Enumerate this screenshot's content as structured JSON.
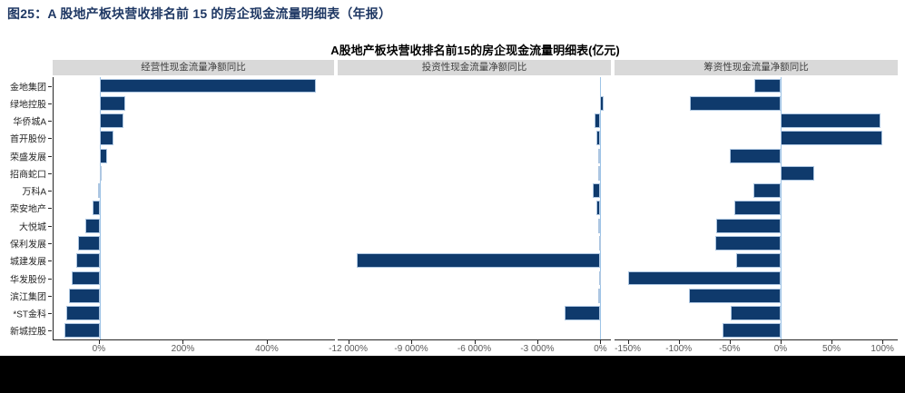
{
  "doc_title": "图25：A 股地产板块营收排名前 15 的房企现金流量明细表（年报）",
  "chart_data": {
    "type": "bar",
    "orientation": "horizontal",
    "title": "A股地产板块营收排名前15的房企现金流量明细表(亿元)",
    "unit": "%",
    "grid": false,
    "legend_position": "none",
    "categories": [
      "金地集团",
      "绿地控股",
      "华侨城A",
      "首开股份",
      "荣盛发展",
      "招商蛇口",
      "万科A",
      "荣安地产",
      "大悦城",
      "保利发展",
      "城建发展",
      "华发股份",
      "滨江集团",
      "*ST金科",
      "新城控股"
    ],
    "panels": [
      {
        "title": "经营性现金流量净额同比",
        "xmin": -110,
        "xmax": 560,
        "ticks": [
          {
            "value": 0,
            "label": "0%"
          },
          {
            "value": 200,
            "label": "200%"
          },
          {
            "value": 400,
            "label": "400%"
          }
        ],
        "values": [
          515,
          61,
          57,
          32,
          17,
          2,
          -5,
          -16,
          -34,
          -52,
          -55,
          -66,
          -74,
          -79,
          -83
        ]
      },
      {
        "title": "投资性现金流量净额同比",
        "xmin": -12500,
        "xmax": 500,
        "ticks": [
          {
            "value": -12000,
            "label": "-12 000%"
          },
          {
            "value": -9000,
            "label": "-9 000%"
          },
          {
            "value": -6000,
            "label": "-6 000%"
          },
          {
            "value": -3000,
            "label": "-3 000%"
          },
          {
            "value": 0,
            "label": "0%"
          }
        ],
        "values": [
          0,
          140,
          -280,
          -170,
          -110,
          -85,
          -350,
          -200,
          -110,
          -70,
          -11600,
          -55,
          -85,
          -1700,
          0
        ]
      },
      {
        "title": "筹资性现金流量净额同比",
        "xmin": -163,
        "xmax": 115,
        "ticks": [
          {
            "value": -150,
            "label": "-150%"
          },
          {
            "value": -100,
            "label": "-100%"
          },
          {
            "value": -50,
            "label": "-50%"
          },
          {
            "value": 0,
            "label": "0%"
          },
          {
            "value": 50,
            "label": "50%"
          },
          {
            "value": 100,
            "label": "100%"
          }
        ],
        "values": [
          -26,
          -89,
          98,
          100,
          -50,
          33,
          -27,
          -45,
          -63,
          -64,
          -44,
          -150,
          -90,
          -49,
          -57
        ]
      }
    ]
  },
  "colors": {
    "bar": "#0F3A6C",
    "bar_edge": "#AEC7E2",
    "zero_line": "#9DC3E6",
    "panel_header_bg": "#D9D9D9",
    "panel_header_text": "#404040",
    "doc_title": "#1F3864",
    "axis_line": "#262626",
    "tick_label": "#595959",
    "category_label": "#262626",
    "bottom_band": "#000000"
  }
}
